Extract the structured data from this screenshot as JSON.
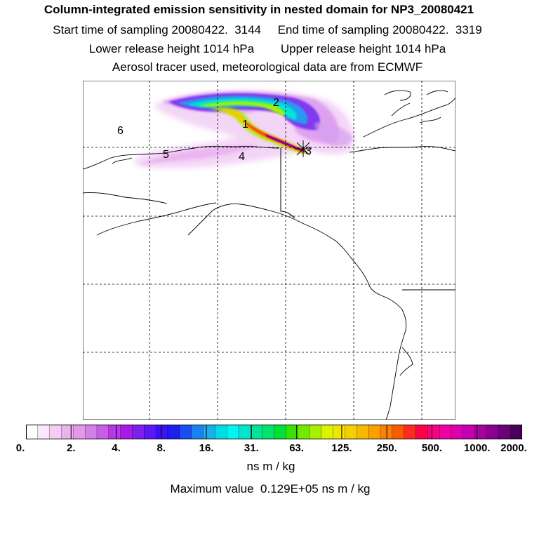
{
  "header": {
    "title": "Column-integrated emission sensitivity in nested domain for NP3_20080421",
    "sampling": "Start time of sampling 20080422.  3144     End time of sampling 20080422.  3319",
    "release": "Lower release height 1014 hPa        Upper release height 1014 hPa",
    "tracer": "Aerosol tracer used, meteorological data are from ECMWF"
  },
  "map": {
    "labels": [
      "1",
      "2",
      "3",
      "4",
      "5",
      "6"
    ]
  },
  "colorbar": {
    "tick_labels": [
      "0.",
      "2.",
      "4.",
      "8.",
      "16.",
      "31.",
      "63.",
      "125.",
      "250.",
      "500.",
      "1000.",
      "2000."
    ],
    "colors": [
      "#ffffff",
      "#fbe6fb",
      "#f4cdf4",
      "#eab3ef",
      "#e09ae9",
      "#d580e6",
      "#c85ee4",
      "#b837e6",
      "#a71ae8",
      "#7e1ff0",
      "#5a18f3",
      "#3a12f5",
      "#1e1ef0",
      "#1b4df0",
      "#1c80f0",
      "#1caee9",
      "#00dbe5",
      "#00f5f5",
      "#00e6c8",
      "#00e39a",
      "#00e46b",
      "#00e03a",
      "#36e400",
      "#72ea00",
      "#a8ef00",
      "#dbf200",
      "#f2e600",
      "#f6cf00",
      "#f8b800",
      "#f9a000",
      "#fa8200",
      "#fb5a00",
      "#fc2c20",
      "#fc0048",
      "#f70082",
      "#ee00a2",
      "#de00b0",
      "#c500ae",
      "#a8009f",
      "#8c0090",
      "#6c0078",
      "#4a005a"
    ],
    "units": "ns m / kg",
    "max_value": "Maximum value  0.129E+05 ns m / kg"
  }
}
